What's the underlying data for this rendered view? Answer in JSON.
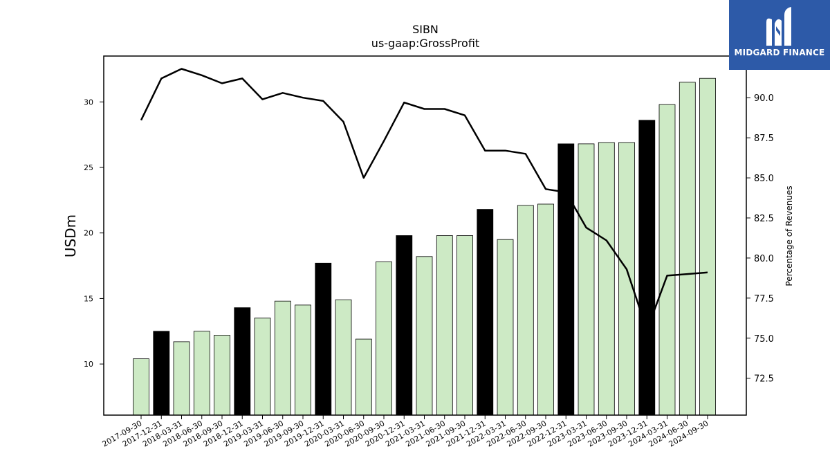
{
  "brand": {
    "name": "MIDGARD FINANCE",
    "color": "#2d5aa8"
  },
  "chart_data": {
    "type": "bar",
    "title": "SIBN",
    "subtitle": "us-gaap:GrossProfit",
    "ylabel": "USDm",
    "y2label": "Percentage of Revenues",
    "ylim": [
      6.1,
      33.5
    ],
    "y2lim": [
      70.2,
      92.6
    ],
    "yticks": [
      10,
      15,
      20,
      25,
      30
    ],
    "y2ticks": [
      "72.5",
      "75.0",
      "77.5",
      "80.0",
      "82.5",
      "85.0",
      "87.5",
      "90.0"
    ],
    "categories": [
      "2017-09-30",
      "2017-12-31",
      "2018-03-31",
      "2018-06-30",
      "2018-09-30",
      "2018-12-31",
      "2019-03-31",
      "2019-06-30",
      "2019-09-30",
      "2019-12-31",
      "2020-03-31",
      "2020-06-30",
      "2020-09-30",
      "2020-12-31",
      "2021-03-31",
      "2021-06-30",
      "2021-09-30",
      "2021-12-31",
      "2022-03-31",
      "2022-06-30",
      "2022-09-30",
      "2022-12-31",
      "2023-03-31",
      "2023-06-30",
      "2023-09-30",
      "2023-12-31",
      "2024-03-31",
      "2024-06-30",
      "2024-09-30"
    ],
    "series": [
      {
        "kind": "bar",
        "values": [
          10.4,
          12.5,
          11.7,
          12.5,
          12.2,
          14.3,
          13.5,
          14.8,
          14.5,
          17.7,
          14.9,
          11.9,
          17.8,
          19.8,
          18.2,
          19.8,
          19.8,
          21.8,
          19.5,
          22.1,
          22.2,
          26.8,
          26.8,
          26.9,
          26.9,
          28.6,
          29.8,
          31.5,
          31.8
        ],
        "year_end": [
          false,
          true,
          false,
          false,
          false,
          true,
          false,
          false,
          false,
          true,
          false,
          false,
          false,
          true,
          false,
          false,
          false,
          true,
          false,
          false,
          false,
          true,
          false,
          false,
          false,
          true,
          false,
          false,
          false
        ]
      },
      {
        "kind": "line",
        "axis": "right",
        "values": [
          88.6,
          91.2,
          91.8,
          91.4,
          90.9,
          91.2,
          89.9,
          90.3,
          90.0,
          89.8,
          88.5,
          85.0,
          87.3,
          89.7,
          89.3,
          89.3,
          88.9,
          86.7,
          86.7,
          86.5,
          84.3,
          84.1,
          81.9,
          81.1,
          79.3,
          75.5,
          78.9,
          79.0,
          79.1
        ]
      }
    ],
    "colors": {
      "bar": "#cdeac5",
      "year_end_bar": "#000000",
      "line": "#000000"
    }
  }
}
